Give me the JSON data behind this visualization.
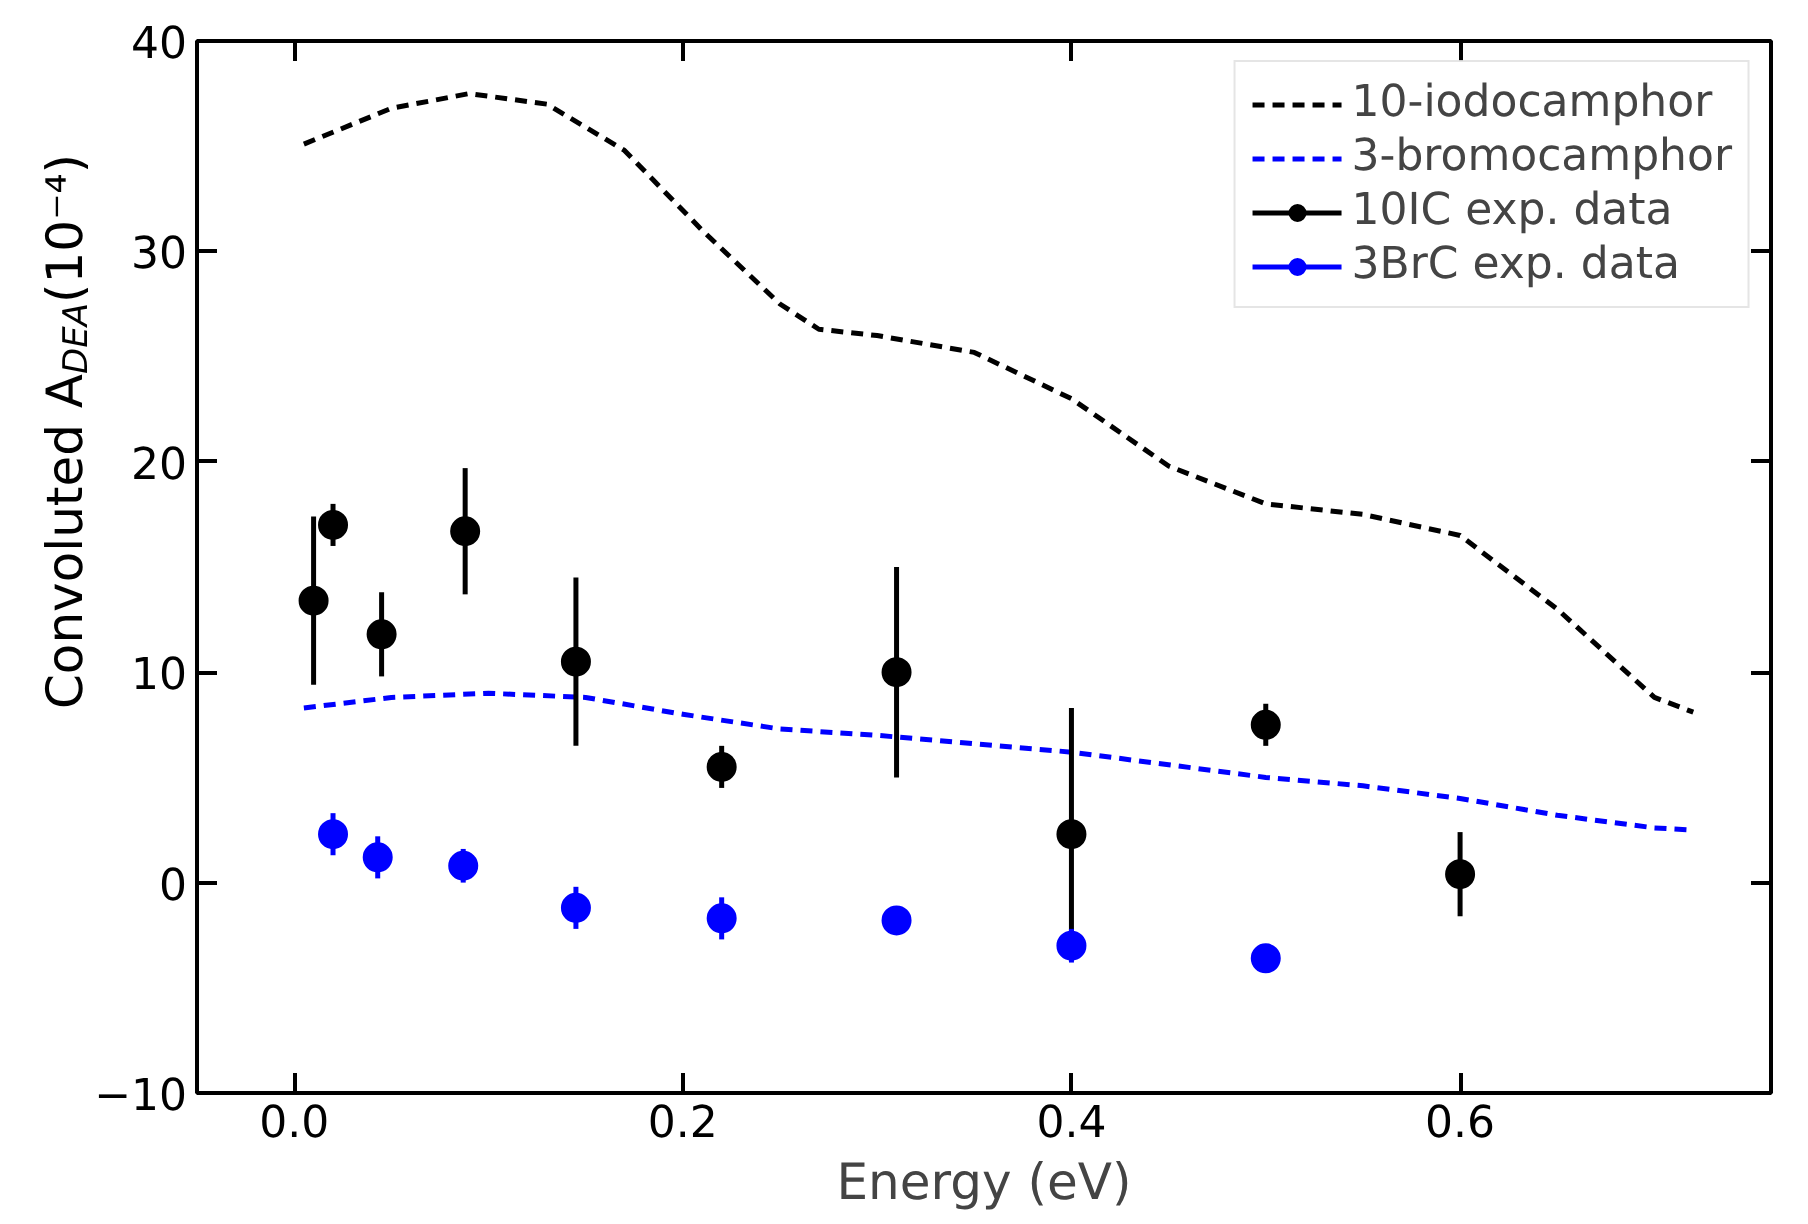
{
  "chart_data": {
    "type": "line",
    "xlabel": "Energy (eV)",
    "ylabel": "Convoluted A$_{DEA}$(10⁻⁴)",
    "xlim": [
      -0.05,
      0.76
    ],
    "ylim": [
      -10,
      40
    ],
    "xticks": [
      {
        "value": 0.0,
        "label": "0.0"
      },
      {
        "value": 0.2,
        "label": "0.2"
      },
      {
        "value": 0.4,
        "label": "0.4"
      },
      {
        "value": 0.6,
        "label": "0.6"
      }
    ],
    "yticks": [
      -10,
      0,
      10,
      20,
      30,
      40
    ],
    "grid": false,
    "legend": "top right",
    "line_style": "dashed",
    "series": [
      {
        "name": "10-iodocamphor",
        "color": "#000000",
        "x": [
          0.005,
          0.05,
          0.09,
          0.13,
          0.17,
          0.21,
          0.25,
          0.27,
          0.3,
          0.35,
          0.4,
          0.45,
          0.5,
          0.55,
          0.6,
          0.65,
          0.7,
          0.72
        ],
        "values": [
          35.1,
          36.8,
          37.5,
          37.0,
          34.8,
          31.0,
          27.5,
          26.3,
          26.0,
          25.2,
          23.0,
          19.8,
          18.0,
          17.5,
          16.5,
          13.0,
          8.8,
          8.1
        ]
      },
      {
        "name": "3-bromocamphor",
        "color": "#0000ff",
        "x": [
          0.005,
          0.05,
          0.1,
          0.15,
          0.2,
          0.25,
          0.3,
          0.35,
          0.4,
          0.45,
          0.5,
          0.55,
          0.6,
          0.65,
          0.7,
          0.72
        ],
        "values": [
          8.3,
          8.8,
          9.0,
          8.8,
          8.0,
          7.3,
          7.0,
          6.6,
          6.2,
          5.6,
          5.0,
          4.6,
          4.0,
          3.2,
          2.6,
          2.5
        ]
      },
      {
        "name": "10IC exp. data",
        "type": "scatter",
        "marker": "circle",
        "color": "#000000",
        "x": [
          0.01,
          0.02,
          0.045,
          0.088,
          0.145,
          0.22,
          0.31,
          0.4,
          0.5,
          0.6
        ],
        "values": [
          13.4,
          17.0,
          11.8,
          16.7,
          10.5,
          5.5,
          10.0,
          2.3,
          7.5,
          0.4
        ],
        "errors": [
          4,
          1,
          2,
          3,
          4,
          1,
          5,
          6,
          1,
          2
        ]
      },
      {
        "name": "3BrC exp. data",
        "type": "scatter",
        "marker": "circle",
        "color": "#0000ff",
        "x": [
          0.02,
          0.043,
          0.087,
          0.145,
          0.22,
          0.31,
          0.4,
          0.5
        ],
        "values": [
          2.3,
          1.2,
          0.8,
          -1.2,
          -1.7,
          -1.8,
          -3.0,
          -3.6
        ],
        "errors": [
          1,
          1,
          0.8,
          1,
          1,
          0.5,
          0.8,
          0.5
        ]
      }
    ]
  }
}
